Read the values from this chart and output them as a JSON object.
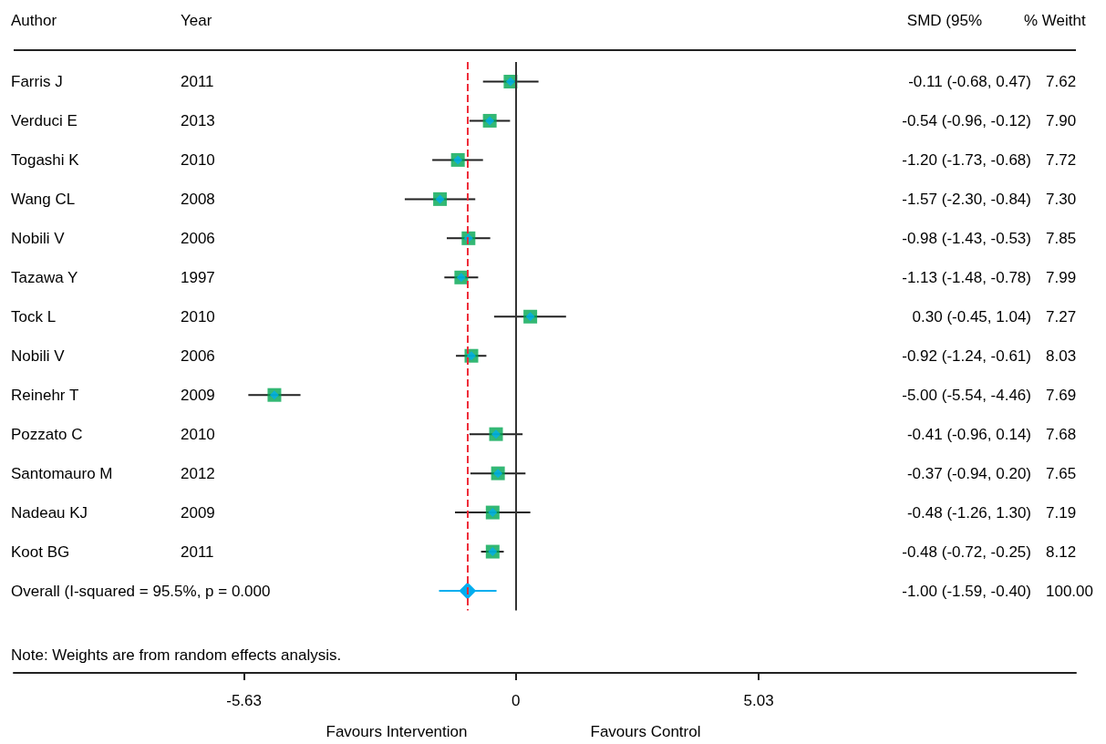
{
  "chart_data": {
    "type": "scatter",
    "orientation": "horizontal",
    "categories": [
      "Farris J",
      "Verduci E",
      "Togashi K",
      "Wang CL",
      "Nobili V",
      "Tazawa Y",
      "Tock L",
      "Nobili V",
      "Reinehr T",
      "Pozzato C",
      "Santomauro M",
      "Nadeau KJ",
      "Koot BG",
      "Overall (I-squared = 95.5%, p = 0.000"
    ],
    "series": [
      {
        "color": "#00a651",
        "marker": "square",
        "values": [
          -0.11,
          -0.54,
          -1.2,
          -1.57,
          -0.98,
          -1.13,
          0.3,
          -0.92,
          -5.0,
          -0.41,
          -0.37,
          -0.48,
          -0.48,
          null
        ],
        "errors": [
          [
            -0.68,
            0.47
          ],
          [
            -0.96,
            -0.12
          ],
          [
            -1.73,
            -0.68
          ],
          [
            -2.3,
            -0.84
          ],
          [
            -1.43,
            -0.53
          ],
          [
            -1.48,
            -0.78
          ],
          [
            -0.45,
            1.04
          ],
          [
            -1.24,
            -0.61
          ],
          [
            -5.54,
            -4.46
          ],
          [
            -0.96,
            0.14
          ],
          [
            -0.94,
            0.2
          ],
          [
            -1.26,
            0.3
          ],
          [
            -0.72,
            -0.25
          ],
          null
        ]
      },
      {
        "color": "#00aeef",
        "marker": "diamond",
        "values": [
          null,
          null,
          null,
          null,
          null,
          null,
          null,
          null,
          null,
          null,
          null,
          null,
          null,
          -1.0
        ],
        "errors": [
          null,
          null,
          null,
          null,
          null,
          null,
          null,
          null,
          null,
          null,
          null,
          null,
          null,
          [
            -1.59,
            -0.4
          ]
        ]
      }
    ],
    "xlim": [
      -10.4,
      11.6
    ],
    "xticks": [
      -5.63,
      0,
      5.03
    ],
    "ref_lines": [
      {
        "axis": "x",
        "value": -1.0,
        "color": "#ee2d3a",
        "line_style": "dashed"
      },
      {
        "axis": "x",
        "value": 0,
        "color": "#333333",
        "line_style": "solid"
      }
    ],
    "grid": false,
    "annotations": [
      "Author",
      "Year",
      "SMD (95%",
      "% Weitht",
      "Note: Weights are from random effects analysis.",
      "Favours Intervention",
      "Favours Control",
      "2011",
      "2013",
      "2010",
      "2008",
      "2006",
      "1997",
      "2010",
      "2006",
      "2009",
      "2010",
      "2012",
      "2009",
      "2011",
      "-0.11 (-0.68, 0.47)",
      "-0.54 (-0.96, -0.12)",
      "-1.20 (-1.73, -0.68)",
      "-1.57 (-2.30, -0.84)",
      "-0.98 (-1.43, -0.53)",
      "-1.13 (-1.48, -0.78)",
      "0.30 (-0.45, 1.04)",
      "-0.92 (-1.24, -0.61)",
      "-5.00 (-5.54, -4.46)",
      "-0.41 (-0.96, 0.14)",
      "-0.37 (-0.94, 0.20)",
      "-0.48 (-1.26, 1.30)",
      "-0.48 (-0.72, -0.25)",
      "-1.00 (-1.59, -0.40)",
      "7.62",
      "7.90",
      "7.72",
      "7.30",
      "7.85",
      "7.99",
      "7.27",
      "8.03",
      "7.69",
      "7.68",
      "7.65",
      "7.19",
      "8.12",
      "100.00"
    ]
  }
}
